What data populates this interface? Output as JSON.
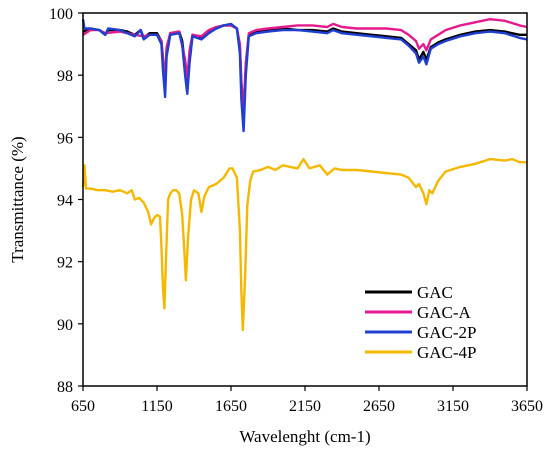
{
  "chart_data": {
    "type": "line",
    "title": "",
    "xlabel": "Wavelenght (cm-1)",
    "ylabel": "Transmittance (%)",
    "xlim": [
      650,
      3650
    ],
    "ylim": [
      88,
      100
    ],
    "xticks": [
      650,
      1150,
      1650,
      2150,
      2650,
      3150,
      3650
    ],
    "yticks": [
      88,
      90,
      92,
      94,
      96,
      98,
      100
    ],
    "xtick_labels": [
      "650",
      "1150",
      "1650",
      "2150",
      "2650",
      "3150",
      "3650"
    ],
    "ytick_labels": [
      "88",
      "90",
      "92",
      "94",
      "96",
      "98",
      "100"
    ],
    "grid": false,
    "legend_position": "bottom-right",
    "series": [
      {
        "name": "GAC",
        "color": "#000000",
        "points": [
          [
            650,
            99.4
          ],
          [
            700,
            99.5
          ],
          [
            760,
            99.45
          ],
          [
            800,
            99.3
          ],
          [
            820,
            99.45
          ],
          [
            900,
            99.45
          ],
          [
            950,
            99.4
          ],
          [
            1000,
            99.3
          ],
          [
            1040,
            99.45
          ],
          [
            1060,
            99.2
          ],
          [
            1100,
            99.35
          ],
          [
            1150,
            99.35
          ],
          [
            1180,
            99.1
          ],
          [
            1190,
            98.5
          ],
          [
            1205,
            97.6
          ],
          [
            1215,
            98.8
          ],
          [
            1240,
            99.35
          ],
          [
            1300,
            99.4
          ],
          [
            1320,
            99.1
          ],
          [
            1340,
            98.3
          ],
          [
            1355,
            97.7
          ],
          [
            1370,
            98.6
          ],
          [
            1390,
            99.3
          ],
          [
            1450,
            99.2
          ],
          [
            1500,
            99.4
          ],
          [
            1550,
            99.5
          ],
          [
            1600,
            99.6
          ],
          [
            1650,
            99.6
          ],
          [
            1690,
            99.5
          ],
          [
            1710,
            98.9
          ],
          [
            1720,
            97.5
          ],
          [
            1735,
            96.6
          ],
          [
            1750,
            98.2
          ],
          [
            1770,
            99.3
          ],
          [
            1820,
            99.4
          ],
          [
            1900,
            99.45
          ],
          [
            2000,
            99.5
          ],
          [
            2100,
            99.45
          ],
          [
            2200,
            99.45
          ],
          [
            2300,
            99.4
          ],
          [
            2340,
            99.5
          ],
          [
            2400,
            99.4
          ],
          [
            2500,
            99.35
          ],
          [
            2600,
            99.3
          ],
          [
            2700,
            99.25
          ],
          [
            2800,
            99.2
          ],
          [
            2850,
            99.0
          ],
          [
            2900,
            98.8
          ],
          [
            2920,
            98.5
          ],
          [
            2950,
            98.75
          ],
          [
            2970,
            98.5
          ],
          [
            3000,
            98.9
          ],
          [
            3050,
            99.05
          ],
          [
            3100,
            99.15
          ],
          [
            3200,
            99.3
          ],
          [
            3300,
            99.4
          ],
          [
            3400,
            99.45
          ],
          [
            3500,
            99.4
          ],
          [
            3600,
            99.3
          ],
          [
            3650,
            99.3
          ]
        ]
      },
      {
        "name": "GAC-A",
        "color": "#e51a8c",
        "points": [
          [
            650,
            99.3
          ],
          [
            700,
            99.45
          ],
          [
            760,
            99.45
          ],
          [
            800,
            99.35
          ],
          [
            900,
            99.4
          ],
          [
            950,
            99.35
          ],
          [
            1000,
            99.3
          ],
          [
            1060,
            99.25
          ],
          [
            1100,
            99.3
          ],
          [
            1150,
            99.3
          ],
          [
            1180,
            99.1
          ],
          [
            1190,
            98.6
          ],
          [
            1205,
            97.8
          ],
          [
            1215,
            98.9
          ],
          [
            1240,
            99.35
          ],
          [
            1300,
            99.4
          ],
          [
            1340,
            98.5
          ],
          [
            1355,
            97.9
          ],
          [
            1370,
            98.8
          ],
          [
            1390,
            99.3
          ],
          [
            1450,
            99.25
          ],
          [
            1500,
            99.45
          ],
          [
            1550,
            99.55
          ],
          [
            1600,
            99.6
          ],
          [
            1650,
            99.6
          ],
          [
            1690,
            99.5
          ],
          [
            1710,
            99.0
          ],
          [
            1720,
            97.8
          ],
          [
            1735,
            96.9
          ],
          [
            1750,
            98.4
          ],
          [
            1770,
            99.35
          ],
          [
            1820,
            99.45
          ],
          [
            1900,
            99.5
          ],
          [
            2000,
            99.55
          ],
          [
            2100,
            99.6
          ],
          [
            2200,
            99.6
          ],
          [
            2300,
            99.55
          ],
          [
            2340,
            99.65
          ],
          [
            2400,
            99.55
          ],
          [
            2500,
            99.5
          ],
          [
            2600,
            99.5
          ],
          [
            2700,
            99.5
          ],
          [
            2800,
            99.45
          ],
          [
            2850,
            99.3
          ],
          [
            2900,
            99.1
          ],
          [
            2920,
            98.85
          ],
          [
            2950,
            99.0
          ],
          [
            2970,
            98.8
          ],
          [
            3000,
            99.15
          ],
          [
            3050,
            99.3
          ],
          [
            3100,
            99.45
          ],
          [
            3200,
            99.6
          ],
          [
            3300,
            99.7
          ],
          [
            3400,
            99.8
          ],
          [
            3500,
            99.75
          ],
          [
            3600,
            99.6
          ],
          [
            3650,
            99.55
          ]
        ]
      },
      {
        "name": "GAC-2P",
        "color": "#1f3fd1",
        "points": [
          [
            650,
            99.8
          ],
          [
            660,
            99.5
          ],
          [
            700,
            99.5
          ],
          [
            760,
            99.45
          ],
          [
            800,
            99.3
          ],
          [
            820,
            99.5
          ],
          [
            900,
            99.45
          ],
          [
            950,
            99.35
          ],
          [
            1000,
            99.25
          ],
          [
            1040,
            99.45
          ],
          [
            1060,
            99.15
          ],
          [
            1100,
            99.3
          ],
          [
            1150,
            99.3
          ],
          [
            1180,
            99.0
          ],
          [
            1190,
            98.2
          ],
          [
            1205,
            97.3
          ],
          [
            1215,
            98.6
          ],
          [
            1240,
            99.3
          ],
          [
            1300,
            99.35
          ],
          [
            1320,
            99.0
          ],
          [
            1340,
            98.0
          ],
          [
            1355,
            97.4
          ],
          [
            1370,
            98.4
          ],
          [
            1390,
            99.25
          ],
          [
            1450,
            99.15
          ],
          [
            1500,
            99.35
          ],
          [
            1550,
            99.5
          ],
          [
            1600,
            99.6
          ],
          [
            1650,
            99.65
          ],
          [
            1690,
            99.5
          ],
          [
            1710,
            98.7
          ],
          [
            1720,
            97.2
          ],
          [
            1735,
            96.2
          ],
          [
            1750,
            98.0
          ],
          [
            1770,
            99.25
          ],
          [
            1820,
            99.35
          ],
          [
            1900,
            99.4
          ],
          [
            2000,
            99.45
          ],
          [
            2100,
            99.45
          ],
          [
            2200,
            99.4
          ],
          [
            2300,
            99.35
          ],
          [
            2340,
            99.45
          ],
          [
            2400,
            99.35
          ],
          [
            2500,
            99.3
          ],
          [
            2600,
            99.25
          ],
          [
            2700,
            99.2
          ],
          [
            2800,
            99.15
          ],
          [
            2850,
            98.95
          ],
          [
            2900,
            98.7
          ],
          [
            2920,
            98.4
          ],
          [
            2950,
            98.6
          ],
          [
            2970,
            98.35
          ],
          [
            3000,
            98.85
          ],
          [
            3050,
            99.0
          ],
          [
            3100,
            99.1
          ],
          [
            3200,
            99.25
          ],
          [
            3300,
            99.35
          ],
          [
            3400,
            99.4
          ],
          [
            3500,
            99.35
          ],
          [
            3600,
            99.2
          ],
          [
            3650,
            99.15
          ]
        ]
      },
      {
        "name": "GAC-4P",
        "color": "#f5b800",
        "points": [
          [
            650,
            94.4
          ],
          [
            660,
            95.1
          ],
          [
            670,
            94.35
          ],
          [
            700,
            94.35
          ],
          [
            750,
            94.3
          ],
          [
            800,
            94.3
          ],
          [
            850,
            94.25
          ],
          [
            900,
            94.3
          ],
          [
            950,
            94.2
          ],
          [
            980,
            94.3
          ],
          [
            1000,
            94.0
          ],
          [
            1030,
            94.05
          ],
          [
            1060,
            93.9
          ],
          [
            1090,
            93.6
          ],
          [
            1110,
            93.2
          ],
          [
            1130,
            93.4
          ],
          [
            1150,
            93.5
          ],
          [
            1170,
            93.45
          ],
          [
            1180,
            92.5
          ],
          [
            1190,
            91.2
          ],
          [
            1200,
            90.5
          ],
          [
            1210,
            92.0
          ],
          [
            1225,
            94.0
          ],
          [
            1240,
            94.2
          ],
          [
            1260,
            94.3
          ],
          [
            1280,
            94.3
          ],
          [
            1300,
            94.2
          ],
          [
            1320,
            93.5
          ],
          [
            1335,
            92.3
          ],
          [
            1345,
            91.4
          ],
          [
            1360,
            92.8
          ],
          [
            1380,
            94.0
          ],
          [
            1400,
            94.3
          ],
          [
            1430,
            94.2
          ],
          [
            1450,
            93.6
          ],
          [
            1470,
            94.1
          ],
          [
            1500,
            94.4
          ],
          [
            1550,
            94.5
          ],
          [
            1600,
            94.7
          ],
          [
            1640,
            95.0
          ],
          [
            1660,
            95.0
          ],
          [
            1690,
            94.7
          ],
          [
            1710,
            93.0
          ],
          [
            1720,
            91.0
          ],
          [
            1730,
            89.8
          ],
          [
            1745,
            91.5
          ],
          [
            1760,
            93.8
          ],
          [
            1780,
            94.6
          ],
          [
            1800,
            94.9
          ],
          [
            1850,
            94.95
          ],
          [
            1900,
            95.05
          ],
          [
            1950,
            94.95
          ],
          [
            2000,
            95.1
          ],
          [
            2050,
            95.05
          ],
          [
            2100,
            95.0
          ],
          [
            2140,
            95.3
          ],
          [
            2180,
            95.0
          ],
          [
            2250,
            95.1
          ],
          [
            2300,
            94.8
          ],
          [
            2350,
            95.0
          ],
          [
            2400,
            94.95
          ],
          [
            2500,
            94.95
          ],
          [
            2600,
            94.9
          ],
          [
            2700,
            94.85
          ],
          [
            2800,
            94.8
          ],
          [
            2850,
            94.7
          ],
          [
            2900,
            94.4
          ],
          [
            2920,
            94.5
          ],
          [
            2950,
            94.2
          ],
          [
            2970,
            93.85
          ],
          [
            2990,
            94.3
          ],
          [
            3010,
            94.2
          ],
          [
            3050,
            94.6
          ],
          [
            3100,
            94.9
          ],
          [
            3200,
            95.05
          ],
          [
            3300,
            95.15
          ],
          [
            3400,
            95.3
          ],
          [
            3500,
            95.25
          ],
          [
            3550,
            95.3
          ],
          [
            3600,
            95.2
          ],
          [
            3650,
            95.2
          ]
        ]
      }
    ]
  }
}
